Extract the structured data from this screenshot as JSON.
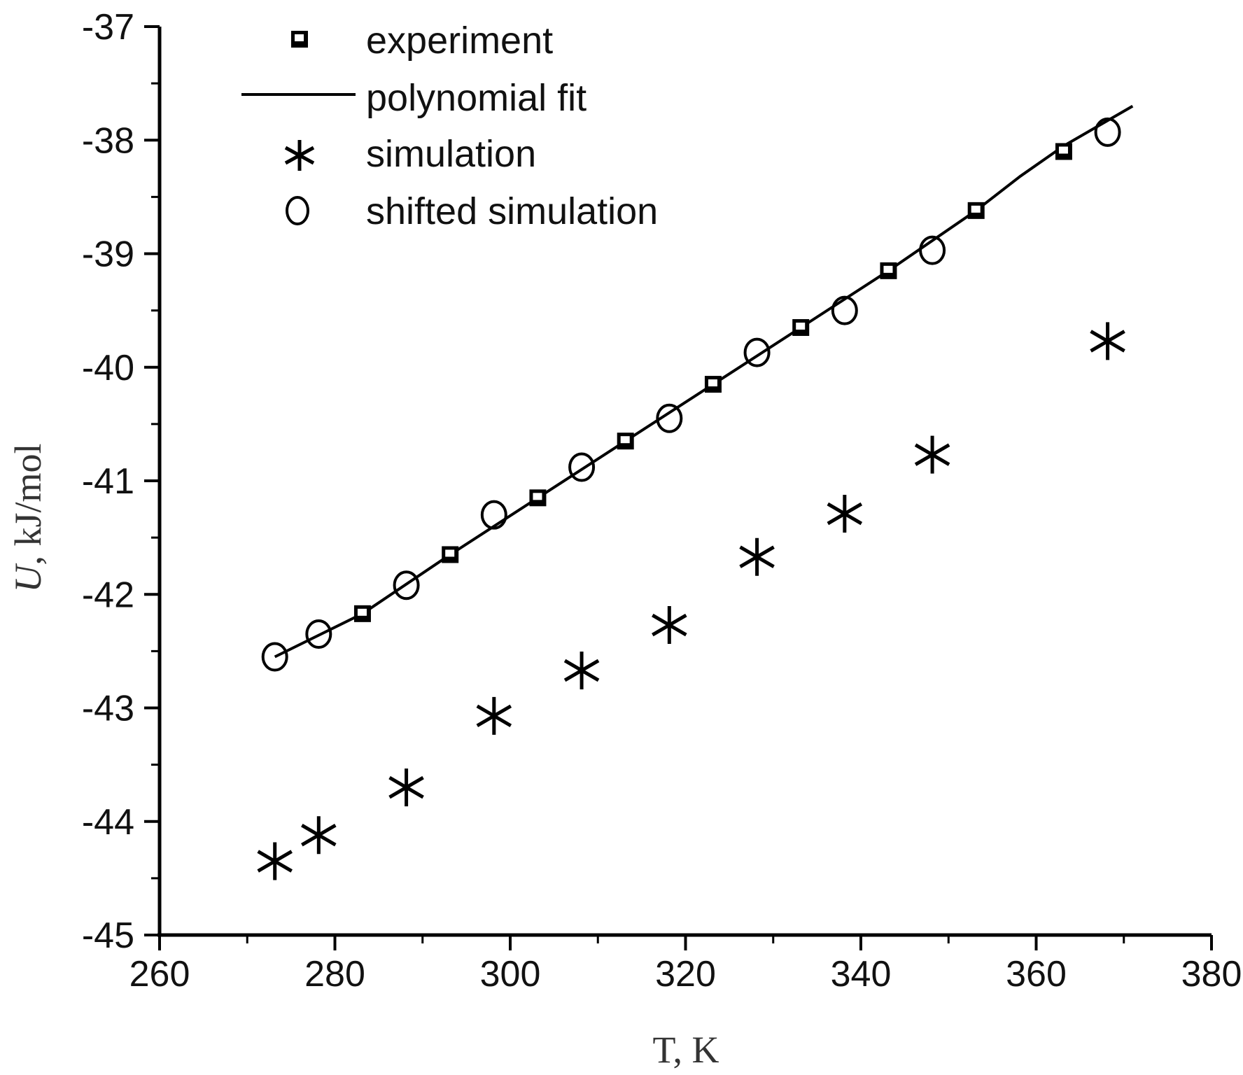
{
  "chart_data": {
    "type": "scatter",
    "title": "",
    "xlabel": "T, K",
    "ylabel": {
      "symbol": "U",
      "rest": ", kJ/mol"
    },
    "xlim": [
      260,
      380
    ],
    "ylim": [
      -45,
      -37
    ],
    "xticks": [
      260,
      280,
      300,
      320,
      340,
      360,
      380
    ],
    "yticks": [
      -37,
      -38,
      -39,
      -40,
      -41,
      -42,
      -43,
      -44,
      -45
    ],
    "xtick_labels": [
      "260",
      "280",
      "300",
      "320",
      "340",
      "360",
      "380"
    ],
    "ytick_labels": [
      "-37",
      "-38",
      "-39",
      "-40",
      "-41",
      "-42",
      "-43",
      "-44",
      "-45"
    ],
    "legend_position": "top-left",
    "series": [
      {
        "name": "experiment",
        "marker": "square",
        "x": [
          283.15,
          293.15,
          303.15,
          313.15,
          323.15,
          333.15,
          343.15,
          353.15,
          363.15
        ],
        "y": [
          -42.17,
          -41.65,
          -41.15,
          -40.65,
          -40.15,
          -39.65,
          -39.15,
          -38.62,
          -38.1
        ]
      },
      {
        "name": "polynomial fit",
        "marker": "line",
        "x": [
          273.15,
          283.15,
          293.15,
          303.15,
          313.15,
          323.15,
          333.15,
          343.15,
          353.15,
          358.15,
          363.15,
          371.0
        ],
        "y": [
          -42.55,
          -42.17,
          -41.65,
          -41.15,
          -40.65,
          -40.15,
          -39.65,
          -39.15,
          -38.62,
          -38.32,
          -38.05,
          -37.7
        ]
      },
      {
        "name": "simulation",
        "marker": "asterisk",
        "x": [
          273.15,
          278.15,
          288.15,
          298.15,
          308.15,
          318.15,
          328.15,
          338.15,
          348.15,
          368.15
        ],
        "y": [
          -44.35,
          -44.12,
          -43.7,
          -43.07,
          -42.67,
          -42.27,
          -41.67,
          -41.29,
          -40.77,
          -39.77
        ]
      },
      {
        "name": "shifted simulation",
        "marker": "circle",
        "x": [
          273.15,
          278.15,
          288.15,
          298.15,
          308.15,
          318.15,
          328.15,
          338.15,
          348.15,
          368.15
        ],
        "y": [
          -42.55,
          -42.35,
          -41.92,
          -41.3,
          -40.88,
          -40.45,
          -39.87,
          -39.5,
          -38.97,
          -37.93
        ]
      }
    ]
  }
}
